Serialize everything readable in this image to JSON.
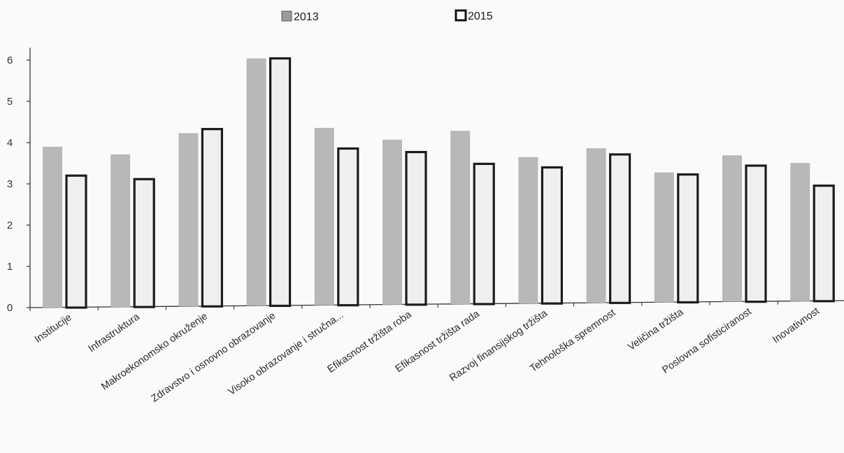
{
  "chart_data": {
    "type": "bar",
    "categories": [
      "Institucije",
      "Infrastruktura",
      "Makroekonomsko okruženje",
      "Zdravstvo i osnovno obrazovanje",
      "Visoko obrazovanje i stručna...",
      "Efikasnost tržišta roba",
      "Efikasnost tržišta rada",
      "Razvoj finansijskog tržišta",
      "Tehnološka spremnost",
      "Veličina tržišta",
      "Poslovna sofisticiranost",
      "Inovativnost"
    ],
    "series": [
      {
        "name": "2013",
        "values": [
          3.9,
          3.7,
          4.2,
          6.0,
          4.3,
          4.0,
          4.2,
          3.55,
          3.75,
          3.15,
          3.55,
          3.35
        ],
        "color": "#b8b8b8"
      },
      {
        "name": "2015",
        "values": [
          3.2,
          3.1,
          4.3,
          6.0,
          3.8,
          3.7,
          3.4,
          3.3,
          3.6,
          3.1,
          3.3,
          2.8
        ],
        "color": "#efefef",
        "stroke": "#1c1c1c"
      }
    ],
    "y_ticks": [
      "0",
      "1",
      "2",
      "3",
      "4",
      "5",
      "6"
    ],
    "ylim": [
      0,
      6.3
    ],
    "grid": false,
    "legend_position": "top"
  }
}
